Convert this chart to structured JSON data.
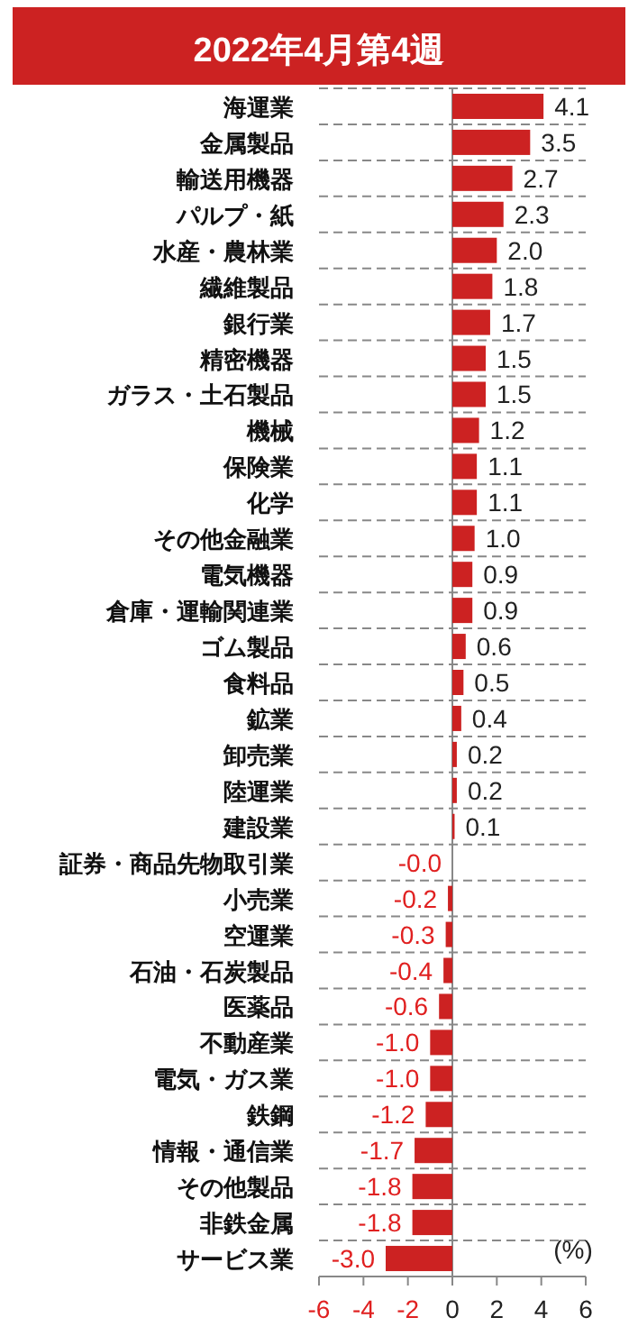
{
  "chart_data": {
    "type": "bar",
    "orientation": "horizontal",
    "title": "2022年4月第4週",
    "categories": [
      "海運業",
      "金属製品",
      "輸送用機器",
      "パルプ・紙",
      "水産・農林業",
      "繊維製品",
      "銀行業",
      "精密機器",
      "ガラス・土石製品",
      "機械",
      "保険業",
      "化学",
      "その他金融業",
      "電気機器",
      "倉庫・運輸関連業",
      "ゴム製品",
      "食料品",
      "鉱業",
      "卸売業",
      "陸運業",
      "建設業",
      "証券・商品先物取引業",
      "小売業",
      "空運業",
      "石油・石炭製品",
      "医薬品",
      "不動産業",
      "電気・ガス業",
      "鉄鋼",
      "情報・通信業",
      "その他製品",
      "非鉄金属",
      "サービス業"
    ],
    "values": [
      4.1,
      3.5,
      2.7,
      2.3,
      2.0,
      1.8,
      1.7,
      1.5,
      1.5,
      1.2,
      1.1,
      1.1,
      1.0,
      0.9,
      0.9,
      0.6,
      0.5,
      0.4,
      0.2,
      0.2,
      0.1,
      -0.0,
      -0.2,
      -0.3,
      -0.4,
      -0.6,
      -1.0,
      -1.0,
      -1.2,
      -1.7,
      -1.8,
      -1.8,
      -3.0
    ],
    "value_labels": [
      "4.1",
      "3.5",
      "2.7",
      "2.3",
      "2.0",
      "1.8",
      "1.7",
      "1.5",
      "1.5",
      "1.2",
      "1.1",
      "1.1",
      "1.0",
      "0.9",
      "0.9",
      "0.6",
      "0.5",
      "0.4",
      "0.2",
      "0.2",
      "0.1",
      "-0.0",
      "-0.2",
      "-0.3",
      "-0.4",
      "-0.6",
      "-1.0",
      "-1.0",
      "-1.2",
      "-1.7",
      "-1.8",
      "-1.8",
      "-3.0"
    ],
    "color": "#cc2222",
    "xlim": [
      -6,
      6
    ],
    "xticks": [
      -6,
      -4,
      -2,
      0,
      2,
      4,
      6
    ],
    "grid": "y",
    "annotations": [
      "(%)"
    ]
  }
}
